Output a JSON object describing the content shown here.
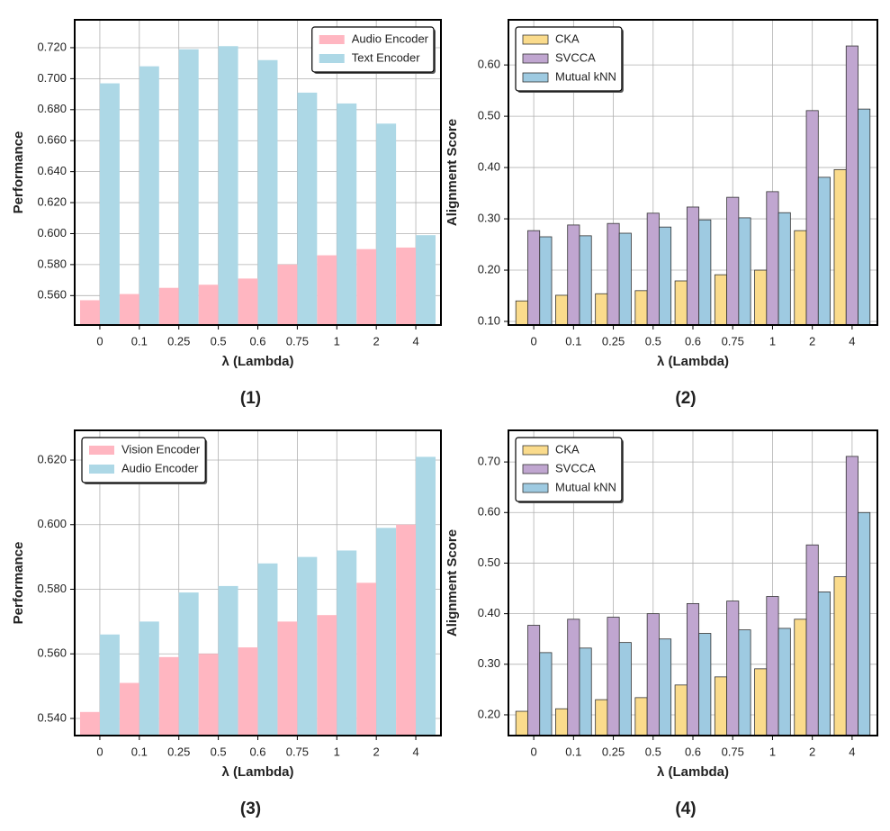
{
  "chart_data": [
    {
      "type": "bar",
      "caption": "(1)",
      "xlabel": "λ (Lambda)",
      "ylabel": "Performance",
      "categories": [
        "0",
        "0.1",
        "0.25",
        "0.5",
        "0.6",
        "0.75",
        "1",
        "2",
        "4"
      ],
      "series": [
        {
          "name": "Audio Encoder",
          "color": "#ffb6c1",
          "values": [
            0.557,
            0.561,
            0.565,
            0.567,
            0.571,
            0.58,
            0.586,
            0.59,
            0.591
          ]
        },
        {
          "name": "Text Encoder",
          "color": "#add8e6",
          "values": [
            0.697,
            0.708,
            0.719,
            0.721,
            0.712,
            0.691,
            0.684,
            0.671,
            0.599
          ]
        }
      ],
      "ylim": [
        0.541,
        0.738
      ],
      "yticks": [
        {
          "value": 0.56,
          "label": "0.560"
        },
        {
          "value": 0.58,
          "label": "0.580"
        },
        {
          "value": 0.6,
          "label": "0.600"
        },
        {
          "value": 0.62,
          "label": "0.620"
        },
        {
          "value": 0.64,
          "label": "0.640"
        },
        {
          "value": 0.66,
          "label": "0.660"
        },
        {
          "value": 0.68,
          "label": "0.680"
        },
        {
          "value": 0.7,
          "label": "0.700"
        },
        {
          "value": 0.72,
          "label": "0.720"
        }
      ],
      "grid": true,
      "legend": "upper right"
    },
    {
      "type": "bar",
      "caption": "(2)",
      "xlabel": "λ (Lambda)",
      "ylabel": "Alignment Score",
      "categories": [
        "0",
        "0.1",
        "0.25",
        "0.5",
        "0.6",
        "0.75",
        "1",
        "2",
        "4"
      ],
      "series": [
        {
          "name": "CKA",
          "color": "#fadb8c",
          "values": [
            0.14,
            0.151,
            0.154,
            0.16,
            0.179,
            0.191,
            0.2,
            0.277,
            0.396
          ]
        },
        {
          "name": "SVCCA",
          "color": "#c0a6d0",
          "values": [
            0.277,
            0.288,
            0.291,
            0.311,
            0.323,
            0.342,
            0.353,
            0.511,
            0.637
          ]
        },
        {
          "name": "Mutual kNN",
          "color": "#9ecae1",
          "values": [
            0.265,
            0.267,
            0.272,
            0.284,
            0.298,
            0.302,
            0.312,
            0.381,
            0.514
          ]
        }
      ],
      "ylim": [
        0.093,
        0.688
      ],
      "yticks": [
        {
          "value": 0.1,
          "label": "0.10"
        },
        {
          "value": 0.2,
          "label": "0.20"
        },
        {
          "value": 0.3,
          "label": "0.30"
        },
        {
          "value": 0.4,
          "label": "0.40"
        },
        {
          "value": 0.5,
          "label": "0.50"
        },
        {
          "value": 0.6,
          "label": "0.60"
        }
      ],
      "grid": true,
      "legend": "upper left",
      "edgecolor": "#333333"
    },
    {
      "type": "bar",
      "caption": "(3)",
      "xlabel": "λ (Lambda)",
      "ylabel": "Performance",
      "categories": [
        "0",
        "0.1",
        "0.25",
        "0.5",
        "0.6",
        "0.75",
        "1",
        "2",
        "4"
      ],
      "series": [
        {
          "name": "Vision Encoder",
          "color": "#ffb6c1",
          "values": [
            0.542,
            0.551,
            0.559,
            0.56,
            0.562,
            0.57,
            0.572,
            0.582,
            0.6
          ]
        },
        {
          "name": "Audio Encoder",
          "color": "#add8e6",
          "values": [
            0.566,
            0.57,
            0.579,
            0.581,
            0.588,
            0.59,
            0.592,
            0.599,
            0.621
          ]
        }
      ],
      "ylim": [
        0.5347,
        0.6292
      ],
      "yticks": [
        {
          "value": 0.54,
          "label": "0.540"
        },
        {
          "value": 0.56,
          "label": "0.560"
        },
        {
          "value": 0.58,
          "label": "0.580"
        },
        {
          "value": 0.6,
          "label": "0.600"
        },
        {
          "value": 0.62,
          "label": "0.620"
        }
      ],
      "grid": true,
      "legend": "upper left"
    },
    {
      "type": "bar",
      "caption": "(4)",
      "xlabel": "λ (Lambda)",
      "ylabel": "Alignment Score",
      "categories": [
        "0",
        "0.1",
        "0.25",
        "0.5",
        "0.6",
        "0.75",
        "1",
        "2",
        "4"
      ],
      "series": [
        {
          "name": "CKA",
          "color": "#fadb8c",
          "values": [
            0.207,
            0.212,
            0.23,
            0.234,
            0.259,
            0.275,
            0.291,
            0.389,
            0.473
          ]
        },
        {
          "name": "SVCCA",
          "color": "#c0a6d0",
          "values": [
            0.377,
            0.389,
            0.393,
            0.4,
            0.42,
            0.425,
            0.434,
            0.536,
            0.711
          ]
        },
        {
          "name": "Mutual kNN",
          "color": "#9ecae1",
          "values": [
            0.323,
            0.332,
            0.343,
            0.35,
            0.361,
            0.368,
            0.371,
            0.443,
            0.6
          ]
        }
      ],
      "ylim": [
        0.159,
        0.7625
      ],
      "yticks": [
        {
          "value": 0.2,
          "label": "0.20"
        },
        {
          "value": 0.3,
          "label": "0.30"
        },
        {
          "value": 0.4,
          "label": "0.40"
        },
        {
          "value": 0.5,
          "label": "0.50"
        },
        {
          "value": 0.6,
          "label": "0.60"
        },
        {
          "value": 0.7,
          "label": "0.70"
        }
      ],
      "grid": true,
      "legend": "upper left",
      "edgecolor": "#333333"
    }
  ]
}
